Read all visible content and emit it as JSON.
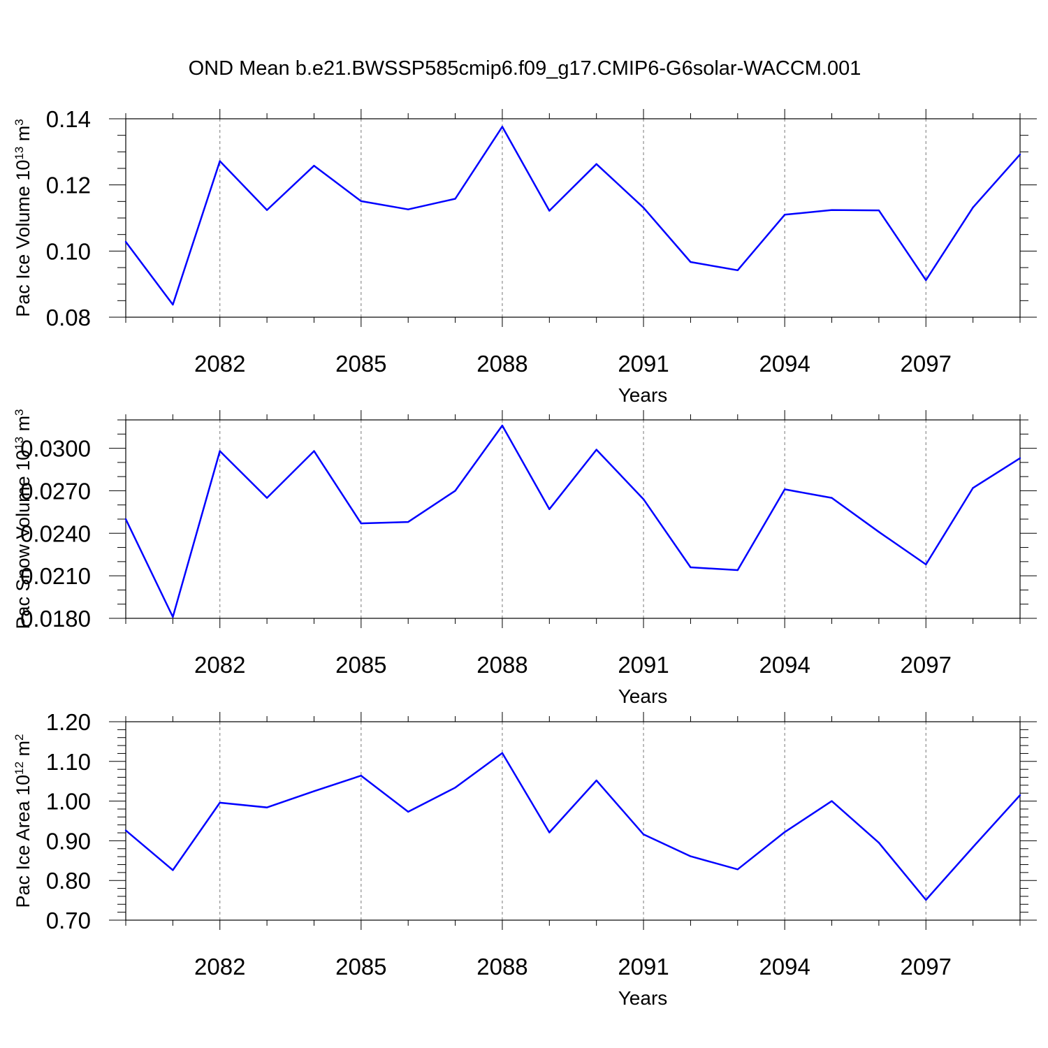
{
  "figure_title": "OND Mean b.e21.BWSSP585cmip6.f09_g17.CMIP6-G6solar-WACCM.001",
  "line_color": "#0000ff",
  "chart_data": [
    {
      "type": "line",
      "title": "",
      "ylabel": "Pac Ice Volume 10",
      "ylabel_exponent": "13",
      "ylabel_unit": " m",
      "ylabel_unit_exponent": "3",
      "xlabel": "Years",
      "xlim": [
        2080,
        2099
      ],
      "ylim": [
        0.08,
        0.14
      ],
      "yticks": [
        0.08,
        0.1,
        0.12,
        0.14
      ],
      "ytick_labels": [
        "0.08",
        "0.10",
        "0.12",
        "0.14"
      ],
      "yminor_step": 0.005,
      "xticks": [
        2082,
        2085,
        2088,
        2091,
        2094,
        2097
      ],
      "xtick_labels": [
        "2082",
        "2085",
        "2088",
        "2091",
        "2094",
        "2097"
      ],
      "grid": "vertical-dashed-at-major-x",
      "x": [
        2080,
        2081,
        2082,
        2083,
        2084,
        2085,
        2086,
        2087,
        2088,
        2089,
        2090,
        2091,
        2092,
        2093,
        2094,
        2095,
        2096,
        2097,
        2098,
        2099
      ],
      "values": [
        0.1028,
        0.0838,
        0.1272,
        0.1124,
        0.1258,
        0.1151,
        0.1126,
        0.1158,
        0.1376,
        0.1122,
        0.1263,
        0.1131,
        0.0967,
        0.0942,
        0.111,
        0.1124,
        0.1123,
        0.0912,
        0.1132,
        0.1292
      ]
    },
    {
      "type": "line",
      "title": "",
      "ylabel": "Pac Snow Volume 10",
      "ylabel_exponent": "13",
      "ylabel_unit": " m",
      "ylabel_unit_exponent": "3",
      "xlabel": "Years",
      "xlim": [
        2080,
        2099
      ],
      "ylim": [
        0.018,
        0.032
      ],
      "yticks": [
        0.018,
        0.021,
        0.024,
        0.027,
        0.03
      ],
      "ytick_labels": [
        "0.0180",
        "0.0210",
        "0.0240",
        "0.0270",
        "0.0300"
      ],
      "yminor_step": 0.001,
      "xticks": [
        2082,
        2085,
        2088,
        2091,
        2094,
        2097
      ],
      "xtick_labels": [
        "2082",
        "2085",
        "2088",
        "2091",
        "2094",
        "2097"
      ],
      "grid": "vertical-dashed-at-major-x",
      "x": [
        2080,
        2081,
        2082,
        2083,
        2084,
        2085,
        2086,
        2087,
        2088,
        2089,
        2090,
        2091,
        2092,
        2093,
        2094,
        2095,
        2096,
        2097,
        2098,
        2099
      ],
      "values": [
        0.025,
        0.0181,
        0.0298,
        0.0265,
        0.0298,
        0.0247,
        0.0248,
        0.027,
        0.0316,
        0.0257,
        0.0299,
        0.0264,
        0.0216,
        0.0214,
        0.0271,
        0.0265,
        0.0241,
        0.0218,
        0.0272,
        0.0293
      ]
    },
    {
      "type": "line",
      "title": "",
      "ylabel": "Pac Ice Area 10",
      "ylabel_exponent": "12",
      "ylabel_unit": " m",
      "ylabel_unit_exponent": "2",
      "xlabel": "Years",
      "xlim": [
        2080,
        2099
      ],
      "ylim": [
        0.7,
        1.2
      ],
      "yticks": [
        0.7,
        0.8,
        0.9,
        1.0,
        1.1,
        1.2
      ],
      "ytick_labels": [
        "0.70",
        "0.80",
        "0.90",
        "1.00",
        "1.10",
        "1.20"
      ],
      "yminor_step": 0.02,
      "xticks": [
        2082,
        2085,
        2088,
        2091,
        2094,
        2097
      ],
      "xtick_labels": [
        "2082",
        "2085",
        "2088",
        "2091",
        "2094",
        "2097"
      ],
      "grid": "vertical-dashed-at-major-x",
      "x": [
        2080,
        2081,
        2082,
        2083,
        2084,
        2085,
        2086,
        2087,
        2088,
        2089,
        2090,
        2091,
        2092,
        2093,
        2094,
        2095,
        2096,
        2097,
        2098,
        2099
      ],
      "values": [
        0.926,
        0.826,
        0.996,
        0.984,
        1.025,
        1.064,
        0.973,
        1.034,
        1.121,
        0.921,
        1.052,
        0.916,
        0.861,
        0.828,
        0.922,
        1.0,
        0.895,
        0.751,
        0.884,
        1.015
      ]
    }
  ]
}
